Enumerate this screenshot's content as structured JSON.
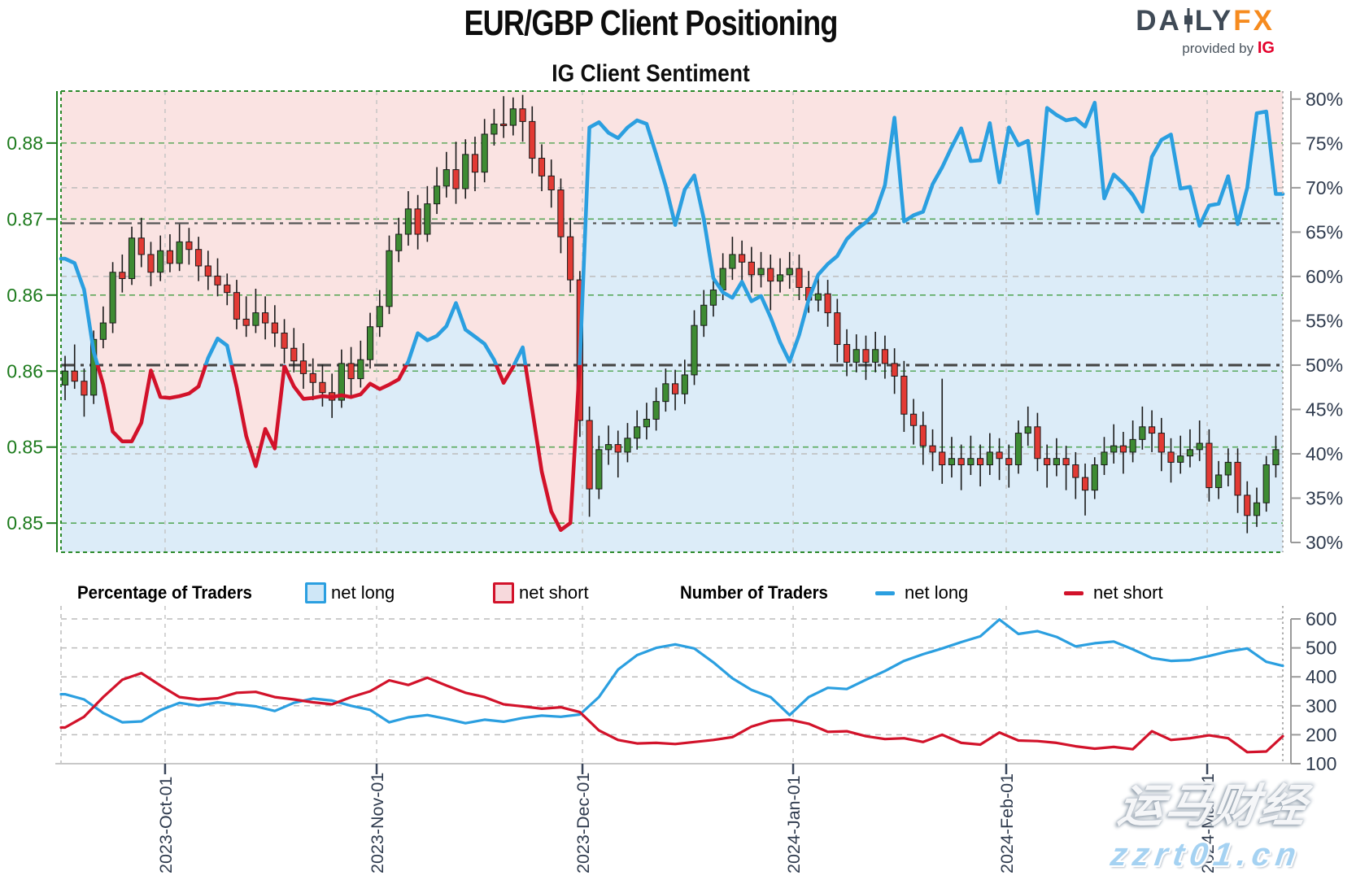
{
  "header": {
    "title": "EUR/GBP Client Positioning",
    "logo": {
      "left": "DA",
      "right": "LY",
      "fx": "FX",
      "provided": "provided by",
      "ig": "IG"
    }
  },
  "legend": {
    "percentage_title": "Percentage of Traders",
    "pct_net_long": "net long",
    "pct_net_short": "net short",
    "number_title": "Number of Traders",
    "num_net_long": "net long",
    "num_net_short": "net short"
  },
  "watermark": {
    "line1": "运马财经",
    "line2": "zzrt01.cn"
  },
  "colors": {
    "long_blue": "#2b9fe0",
    "short_red": "#d2122a",
    "candle_up": "#3e8b33",
    "candle_down": "#e23a34",
    "candle_stroke": "#1a1a1a",
    "area_long": "#dcecf8",
    "area_short": "#fae3e2",
    "grid_green": "#3a9a3a",
    "grid_gray": "#bcbcbc",
    "border_green": "#2c8a2c",
    "dashdot": "#565656",
    "axis_green": "#1c7a1c",
    "axis_slate": "#2f3b4e",
    "axis_gray": "#9a9a9a"
  },
  "chart_data": [
    {
      "type": "candlestick_with_sentiment_lines",
      "title": "IG Client Sentiment",
      "left_axis_ticks": [
        {
          "label": "0.88",
          "value": 0.88
        },
        {
          "label": "0.87",
          "value": 0.874
        },
        {
          "label": "0.86",
          "value": 0.868
        },
        {
          "label": "0.86",
          "value": 0.862
        },
        {
          "label": "0.85",
          "value": 0.856
        },
        {
          "label": "0.85",
          "value": 0.85
        }
      ],
      "right_axis_ticks": [
        {
          "label": "80%",
          "value": 80
        },
        {
          "label": "75%",
          "value": 75
        },
        {
          "label": "70%",
          "value": 70
        },
        {
          "label": "65%",
          "value": 65
        },
        {
          "label": "60%",
          "value": 60
        },
        {
          "label": "55%",
          "value": 55
        },
        {
          "label": "50%",
          "value": 50
        },
        {
          "label": "45%",
          "value": 45
        },
        {
          "label": "40%",
          "value": 40
        },
        {
          "label": "35%",
          "value": 35
        },
        {
          "label": "30%",
          "value": 30
        }
      ],
      "ylim_price": [
        0.8477,
        0.8841
      ],
      "ylim_pct": [
        28.9,
        80.9
      ],
      "gray_grid_pcts": [
        70,
        60,
        40
      ],
      "dashdot_pcts": [
        66,
        50
      ],
      "months": [
        {
          "label": "2023-Oct-01",
          "i": 10.49
        },
        {
          "label": "2023-Nov-01",
          "i": 32.68
        },
        {
          "label": "2023-Dec-01",
          "i": 54.27
        },
        {
          "label": "2024-Jan-01",
          "i": 76.37
        },
        {
          "label": "2024-Feb-01",
          "i": 98.72
        },
        {
          "label": "2024-Mar-01",
          "i": 119.8
        }
      ],
      "sentiment_net_long_pct": [
        62.0,
        61.5,
        58.5,
        51.5,
        47.8,
        42.5,
        41.4,
        41.4,
        43.5,
        49.4,
        46.4,
        46.3,
        46.5,
        46.8,
        47.6,
        50.8,
        53.0,
        52.2,
        47.5,
        42.0,
        38.6,
        42.8,
        40.6,
        49.9,
        47.6,
        46.2,
        46.3,
        46.5,
        46.4,
        46.6,
        46.4,
        46.7,
        47.9,
        47.3,
        47.8,
        48.4,
        50.4,
        53.6,
        52.8,
        53.3,
        54.4,
        57.0,
        54.0,
        53.2,
        52.4,
        50.6,
        48.0,
        49.8,
        52.0,
        45.0,
        38.0,
        33.5,
        31.4,
        32.2,
        50.5,
        76.8,
        77.4,
        76.2,
        75.6,
        76.8,
        77.6,
        77.2,
        73.8,
        70.2,
        65.8,
        69.8,
        71.4,
        66.5,
        59.8,
        58.2,
        57.6,
        59.4,
        57.2,
        57.8,
        55.4,
        52.6,
        50.4,
        53.4,
        57.4,
        60.2,
        61.4,
        62.3,
        64.2,
        65.3,
        66.1,
        67.2,
        70.3,
        77.9,
        66.2,
        66.9,
        67.3,
        70.4,
        72.3,
        74.6,
        76.7,
        73.0,
        73.1,
        77.3,
        70.6,
        76.8,
        74.8,
        75.3,
        67.1,
        79.0,
        78.2,
        77.6,
        77.8,
        76.9,
        79.6,
        68.8,
        71.5,
        70.5,
        69.2,
        67.3,
        73.5,
        75.4,
        76.0,
        69.9,
        70.1,
        65.7,
        68.0,
        68.2,
        71.3,
        65.9,
        70.0,
        78.4,
        78.6,
        69.3
      ],
      "candles_ohlc": [
        [
          0.8609,
          0.8632,
          0.8597,
          0.862
        ],
        [
          0.862,
          0.8641,
          0.8606,
          0.8612
        ],
        [
          0.8612,
          0.8622,
          0.8584,
          0.8601
        ],
        [
          0.8601,
          0.8652,
          0.8594,
          0.8645
        ],
        [
          0.8645,
          0.8671,
          0.8638,
          0.8658
        ],
        [
          0.8658,
          0.8706,
          0.865,
          0.8698
        ],
        [
          0.8698,
          0.8712,
          0.8682,
          0.8693
        ],
        [
          0.8693,
          0.8734,
          0.8688,
          0.8725
        ],
        [
          0.8725,
          0.8741,
          0.8702,
          0.8712
        ],
        [
          0.8712,
          0.8722,
          0.8687,
          0.8698
        ],
        [
          0.8698,
          0.8727,
          0.8691,
          0.8715
        ],
        [
          0.8715,
          0.8728,
          0.8698,
          0.8705
        ],
        [
          0.8705,
          0.8736,
          0.8699,
          0.8722
        ],
        [
          0.8722,
          0.8733,
          0.8704,
          0.8716
        ],
        [
          0.8716,
          0.8726,
          0.8691,
          0.8703
        ],
        [
          0.8703,
          0.8715,
          0.8684,
          0.8695
        ],
        [
          0.8695,
          0.8709,
          0.8679,
          0.8688
        ],
        [
          0.8688,
          0.8697,
          0.8672,
          0.8682
        ],
        [
          0.8682,
          0.8692,
          0.8653,
          0.8661
        ],
        [
          0.8661,
          0.8679,
          0.8647,
          0.8656
        ],
        [
          0.8656,
          0.8685,
          0.865,
          0.8666
        ],
        [
          0.8666,
          0.8679,
          0.8645,
          0.8658
        ],
        [
          0.8658,
          0.8672,
          0.8639,
          0.865
        ],
        [
          0.865,
          0.8661,
          0.8626,
          0.8638
        ],
        [
          0.8638,
          0.8654,
          0.8619,
          0.8628
        ],
        [
          0.8628,
          0.8642,
          0.8606,
          0.8618
        ],
        [
          0.8618,
          0.863,
          0.8597,
          0.8611
        ],
        [
          0.8611,
          0.8625,
          0.8592,
          0.8603
        ],
        [
          0.8603,
          0.8618,
          0.8583,
          0.8597
        ],
        [
          0.8597,
          0.8637,
          0.8591,
          0.8626
        ],
        [
          0.8626,
          0.8639,
          0.8601,
          0.8614
        ],
        [
          0.8614,
          0.8644,
          0.8607,
          0.8629
        ],
        [
          0.8629,
          0.8666,
          0.8622,
          0.8655
        ],
        [
          0.8655,
          0.8684,
          0.8647,
          0.8671
        ],
        [
          0.8671,
          0.8727,
          0.8665,
          0.8715
        ],
        [
          0.8715,
          0.8741,
          0.8706,
          0.8728
        ],
        [
          0.8728,
          0.8762,
          0.8719,
          0.8748
        ],
        [
          0.8748,
          0.8759,
          0.8716,
          0.8728
        ],
        [
          0.8728,
          0.8766,
          0.8722,
          0.8752
        ],
        [
          0.8752,
          0.8781,
          0.8744,
          0.8766
        ],
        [
          0.8766,
          0.8793,
          0.8757,
          0.8779
        ],
        [
          0.8779,
          0.8801,
          0.8752,
          0.8764
        ],
        [
          0.8764,
          0.8803,
          0.8756,
          0.8791
        ],
        [
          0.8791,
          0.8805,
          0.8762,
          0.8777
        ],
        [
          0.8777,
          0.8819,
          0.8769,
          0.8807
        ],
        [
          0.8807,
          0.8827,
          0.8798,
          0.8815
        ],
        [
          0.8815,
          0.8837,
          0.8804,
          0.8814
        ],
        [
          0.8814,
          0.8836,
          0.8806,
          0.8827
        ],
        [
          0.8827,
          0.8838,
          0.8801,
          0.8817
        ],
        [
          0.8817,
          0.8829,
          0.8776,
          0.8788
        ],
        [
          0.8788,
          0.8799,
          0.8762,
          0.8774
        ],
        [
          0.8774,
          0.8787,
          0.8749,
          0.8763
        ],
        [
          0.8763,
          0.8772,
          0.8713,
          0.8726
        ],
        [
          0.8726,
          0.8741,
          0.8682,
          0.8692
        ],
        [
          0.8692,
          0.8699,
          0.8568,
          0.8581
        ],
        [
          0.8581,
          0.8592,
          0.8505,
          0.8527
        ],
        [
          0.8527,
          0.8569,
          0.8519,
          0.8558
        ],
        [
          0.8558,
          0.8577,
          0.8546,
          0.8562
        ],
        [
          0.8562,
          0.8573,
          0.8536,
          0.8556
        ],
        [
          0.8556,
          0.8579,
          0.8548,
          0.8567
        ],
        [
          0.8567,
          0.8589,
          0.8558,
          0.8576
        ],
        [
          0.8576,
          0.8595,
          0.8566,
          0.8582
        ],
        [
          0.8582,
          0.8607,
          0.8573,
          0.8596
        ],
        [
          0.8596,
          0.8622,
          0.8588,
          0.861
        ],
        [
          0.861,
          0.8621,
          0.8589,
          0.8602
        ],
        [
          0.8602,
          0.8629,
          0.8594,
          0.8617
        ],
        [
          0.8617,
          0.8668,
          0.8609,
          0.8656
        ],
        [
          0.8656,
          0.8684,
          0.8647,
          0.8672
        ],
        [
          0.8672,
          0.8696,
          0.8663,
          0.8684
        ],
        [
          0.8684,
          0.8713,
          0.8676,
          0.8701
        ],
        [
          0.8701,
          0.8726,
          0.8692,
          0.8712
        ],
        [
          0.8712,
          0.8723,
          0.8689,
          0.8706
        ],
        [
          0.8706,
          0.8718,
          0.8682,
          0.8696
        ],
        [
          0.8696,
          0.8714,
          0.8686,
          0.8701
        ],
        [
          0.8701,
          0.8712,
          0.8668,
          0.8691
        ],
        [
          0.8691,
          0.8709,
          0.8682,
          0.8696
        ],
        [
          0.8696,
          0.8714,
          0.8685,
          0.8701
        ],
        [
          0.8701,
          0.8712,
          0.8676,
          0.8686
        ],
        [
          0.8686,
          0.8699,
          0.8666,
          0.8676
        ],
        [
          0.8676,
          0.8697,
          0.8667,
          0.8681
        ],
        [
          0.8681,
          0.8692,
          0.8655,
          0.8666
        ],
        [
          0.8666,
          0.8677,
          0.8627,
          0.8641
        ],
        [
          0.8641,
          0.8653,
          0.8616,
          0.8627
        ],
        [
          0.8627,
          0.8649,
          0.8619,
          0.8637
        ],
        [
          0.8637,
          0.8648,
          0.8613,
          0.8627
        ],
        [
          0.8627,
          0.8651,
          0.8619,
          0.8637
        ],
        [
          0.8637,
          0.8648,
          0.8614,
          0.8626
        ],
        [
          0.8626,
          0.8638,
          0.8602,
          0.8616
        ],
        [
          0.8616,
          0.8628,
          0.8572,
          0.8586
        ],
        [
          0.8586,
          0.8598,
          0.8562,
          0.8577
        ],
        [
          0.8577,
          0.8588,
          0.8546,
          0.8561
        ],
        [
          0.8561,
          0.8574,
          0.8541,
          0.8556
        ],
        [
          0.8556,
          0.8614,
          0.8531,
          0.8546
        ],
        [
          0.8546,
          0.8568,
          0.8536,
          0.8551
        ],
        [
          0.8551,
          0.8562,
          0.8526,
          0.8546
        ],
        [
          0.8546,
          0.8569,
          0.8538,
          0.8551
        ],
        [
          0.8551,
          0.8562,
          0.8529,
          0.8546
        ],
        [
          0.8546,
          0.8571,
          0.8538,
          0.8556
        ],
        [
          0.8556,
          0.8567,
          0.8534,
          0.8551
        ],
        [
          0.8551,
          0.8562,
          0.8528,
          0.8546
        ],
        [
          0.8546,
          0.8581,
          0.8539,
          0.8571
        ],
        [
          0.8571,
          0.8592,
          0.8561,
          0.8576
        ],
        [
          0.8576,
          0.8587,
          0.8541,
          0.8551
        ],
        [
          0.8551,
          0.8562,
          0.8528,
          0.8546
        ],
        [
          0.8546,
          0.8567,
          0.8537,
          0.8551
        ],
        [
          0.8551,
          0.8561,
          0.8526,
          0.8546
        ],
        [
          0.8546,
          0.8556,
          0.8519,
          0.8536
        ],
        [
          0.8536,
          0.8547,
          0.8506,
          0.8526
        ],
        [
          0.8526,
          0.8552,
          0.8519,
          0.8546
        ],
        [
          0.8546,
          0.8568,
          0.8538,
          0.8556
        ],
        [
          0.8556,
          0.8578,
          0.8547,
          0.8561
        ],
        [
          0.8561,
          0.8572,
          0.8539,
          0.8556
        ],
        [
          0.8556,
          0.8581,
          0.8548,
          0.8566
        ],
        [
          0.8566,
          0.8592,
          0.8558,
          0.8576
        ],
        [
          0.8576,
          0.8589,
          0.8556,
          0.8571
        ],
        [
          0.8571,
          0.8583,
          0.8541,
          0.8556
        ],
        [
          0.8556,
          0.8567,
          0.8532,
          0.8548
        ],
        [
          0.8548,
          0.8569,
          0.8539,
          0.8553
        ],
        [
          0.8553,
          0.8574,
          0.8544,
          0.8558
        ],
        [
          0.8558,
          0.8581,
          0.8549,
          0.8563
        ],
        [
          0.8563,
          0.8574,
          0.8517,
          0.8528
        ],
        [
          0.8528,
          0.8549,
          0.8519,
          0.8538
        ],
        [
          0.8538,
          0.8559,
          0.8529,
          0.8548
        ],
        [
          0.8548,
          0.8559,
          0.8508,
          0.8522
        ],
        [
          0.8522,
          0.8533,
          0.8492,
          0.8506
        ],
        [
          0.8506,
          0.8528,
          0.8497,
          0.8516
        ],
        [
          0.8516,
          0.8553,
          0.8509,
          0.8546
        ],
        [
          0.8546,
          0.8569,
          0.8536,
          0.8558
        ]
      ]
    },
    {
      "type": "line",
      "right_axis_ticks": [
        {
          "label": "600",
          "value": 600
        },
        {
          "label": "500",
          "value": 500
        },
        {
          "label": "400",
          "value": 400
        },
        {
          "label": "300",
          "value": 300
        },
        {
          "label": "200",
          "value": 200
        },
        {
          "label": "100",
          "value": 100
        }
      ],
      "ylim": [
        100,
        645
      ],
      "series": [
        {
          "name": "net long",
          "values": [
            340,
            322,
            275,
            243,
            246,
            285,
            310,
            300,
            312,
            305,
            298,
            282,
            310,
            325,
            318,
            300,
            286,
            243,
            260,
            268,
            255,
            240,
            252,
            245,
            258,
            266,
            262,
            270,
            330,
            425,
            475,
            500,
            512,
            498,
            450,
            395,
            355,
            330,
            268,
            330,
            362,
            358,
            390,
            420,
            455,
            478,
            498,
            520,
            540,
            598,
            548,
            558,
            538,
            505,
            516,
            522,
            495,
            465,
            455,
            458,
            472,
            488,
            498,
            452,
            438
          ]
        },
        {
          "name": "net short",
          "values": [
            225,
            262,
            330,
            390,
            413,
            370,
            330,
            322,
            326,
            345,
            348,
            330,
            322,
            312,
            305,
            330,
            350,
            388,
            372,
            397,
            370,
            345,
            330,
            305,
            298,
            290,
            295,
            278,
            215,
            182,
            170,
            172,
            168,
            175,
            182,
            192,
            228,
            248,
            252,
            238,
            210,
            212,
            195,
            185,
            188,
            175,
            200,
            172,
            166,
            208,
            180,
            178,
            172,
            160,
            152,
            158,
            150,
            212,
            182,
            188,
            198,
            188,
            140,
            142,
            195
          ]
        }
      ]
    }
  ]
}
